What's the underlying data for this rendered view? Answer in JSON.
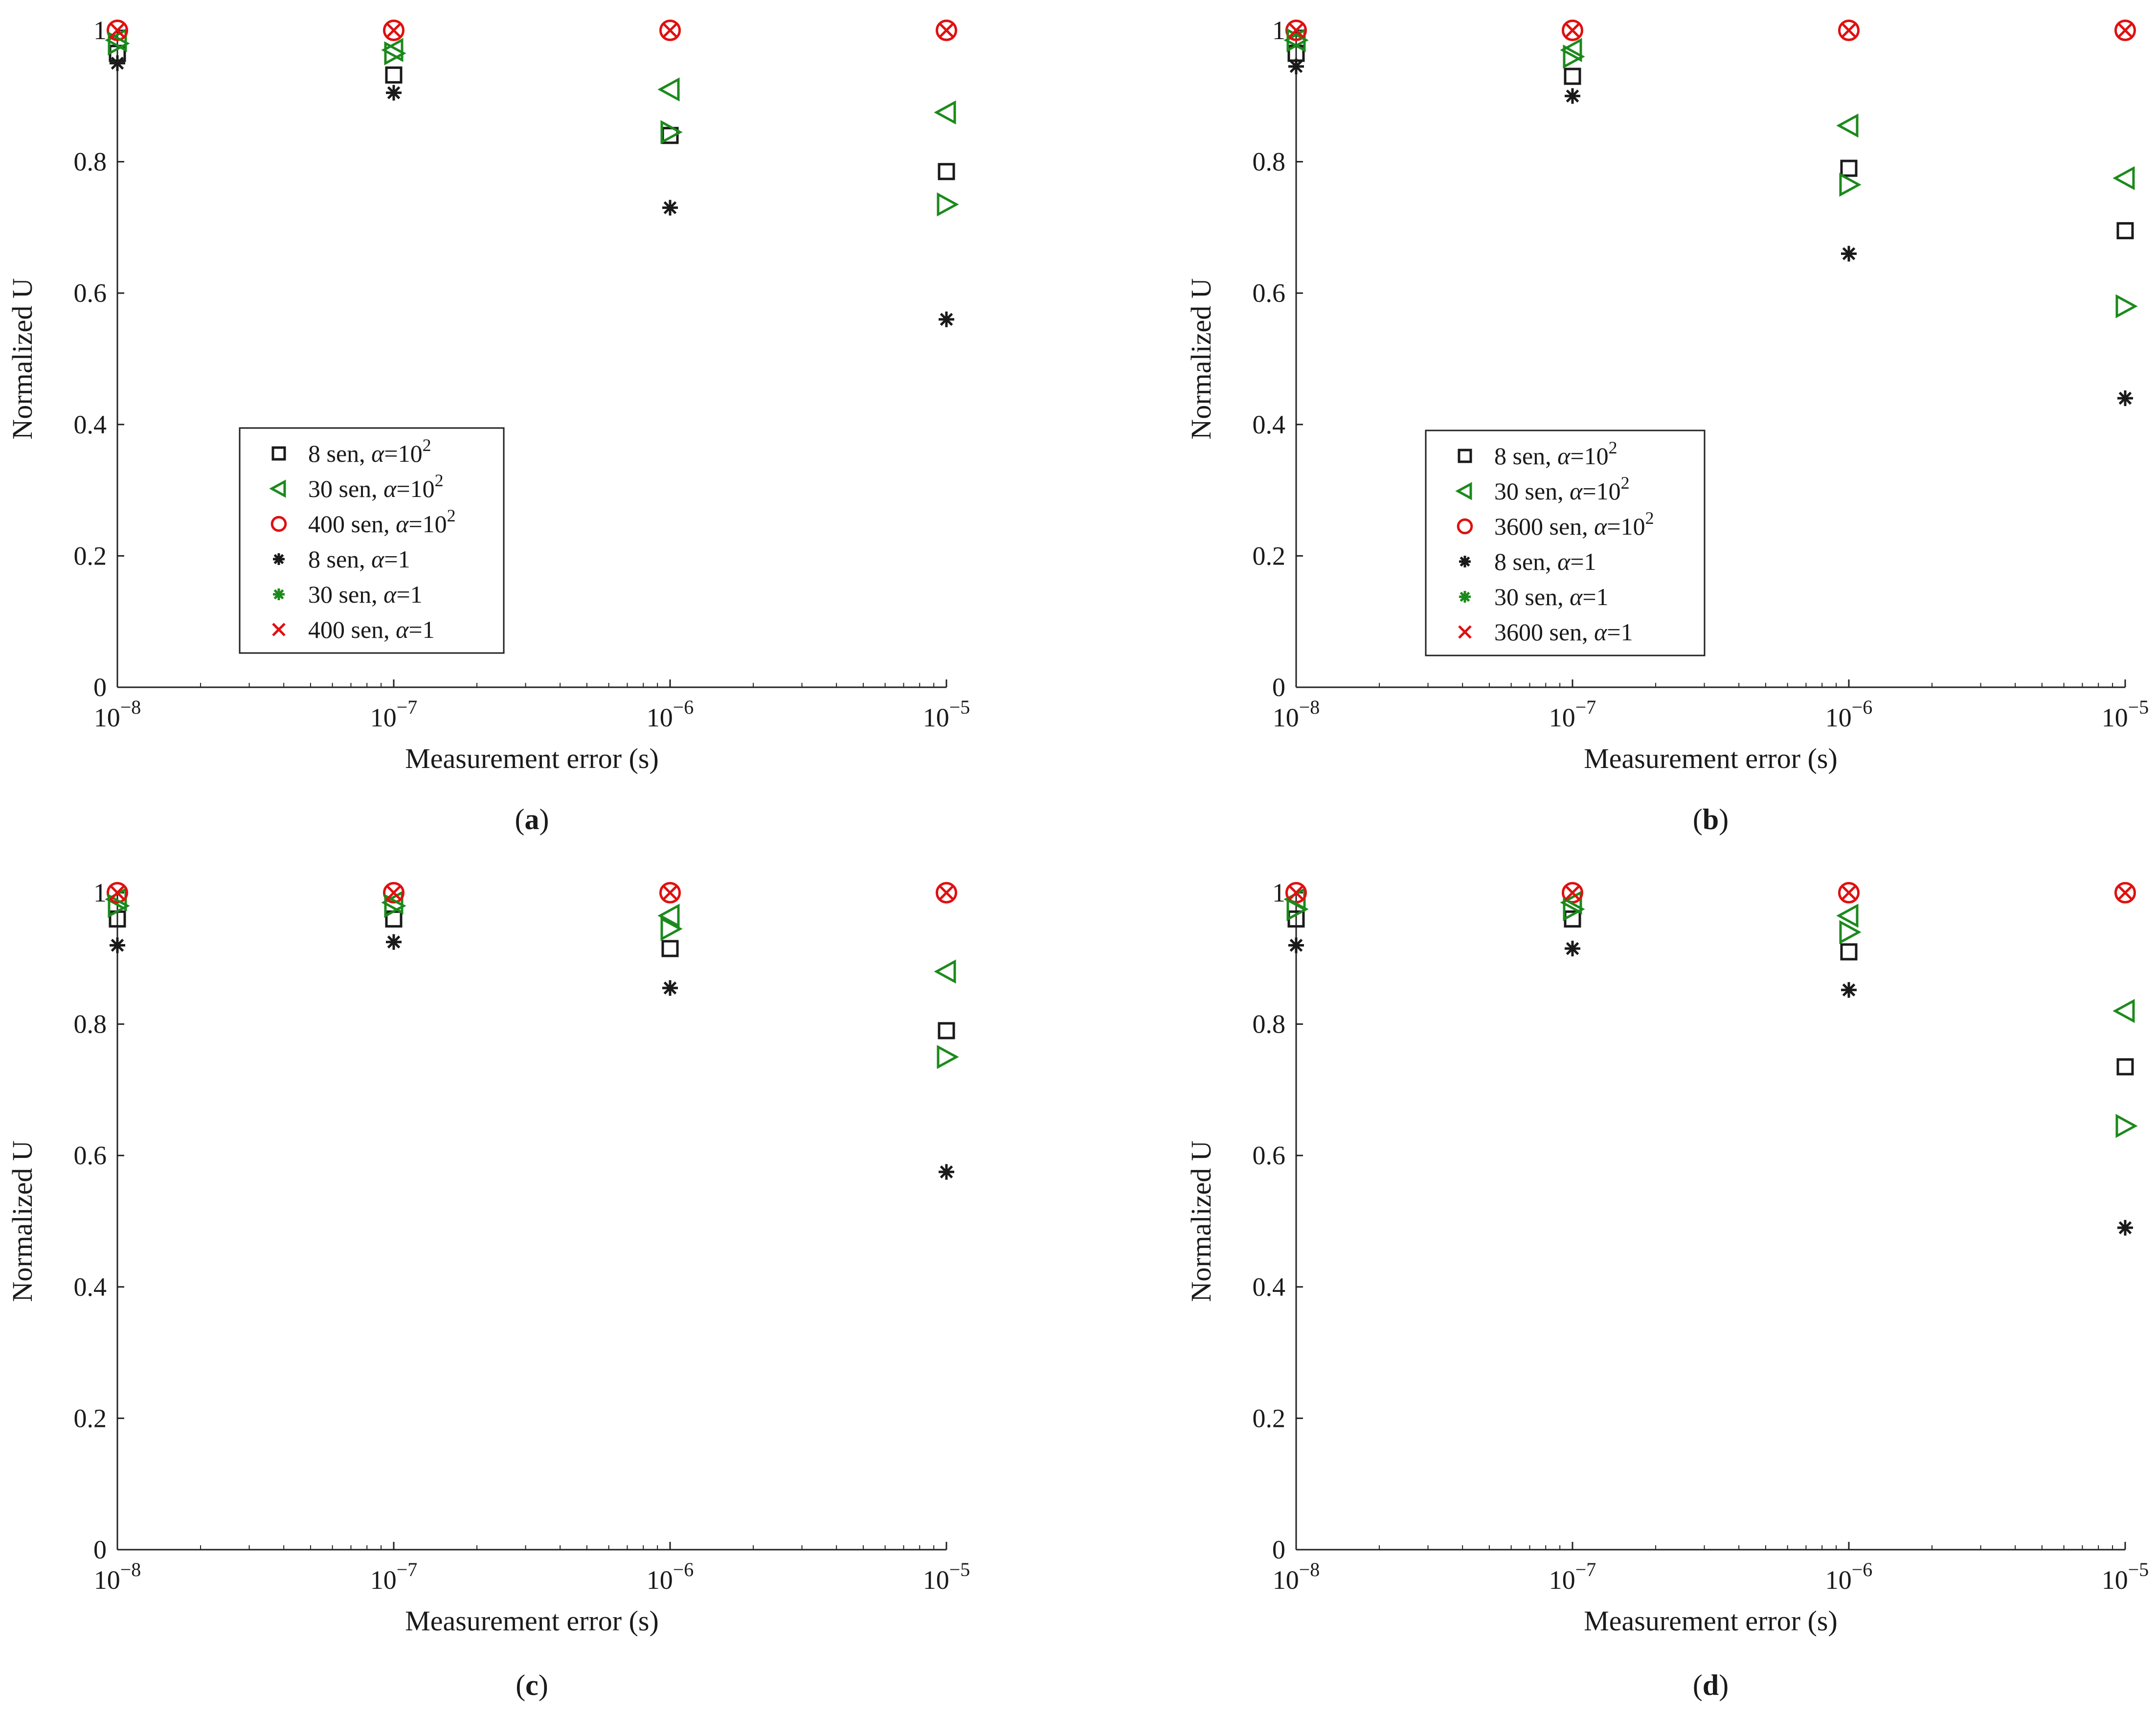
{
  "colors": {
    "black": "#1a1a1a",
    "green": "#1b8a1b",
    "red": "#e01010"
  },
  "chart_data": [
    {
      "id": "a",
      "caption": "a",
      "type": "scatter",
      "xscale": "log",
      "xlabel": "Measurement error (s)",
      "ylabel": "Normalized U",
      "xlim": [
        1e-08,
        1e-05
      ],
      "ylim": [
        0,
        1
      ],
      "x_tick_exponents": [
        -8,
        -7,
        -6,
        -5
      ],
      "y_ticks": [
        "0",
        "0.2",
        "0.4",
        "0.6",
        "0.8",
        "1"
      ],
      "legend": {
        "placement": "center-left",
        "entries": [
          {
            "marker": "square",
            "color": "black",
            "sen": "8 sen,",
            "alpha": "α",
            "value": "=10",
            "sup": "2"
          },
          {
            "marker": "triangle-left",
            "color": "green",
            "sen": "30 sen,",
            "alpha": "α",
            "value": "=10",
            "sup": "2"
          },
          {
            "marker": "circle",
            "color": "red",
            "sen": "400 sen,",
            "alpha": "α",
            "value": "=10",
            "sup": "2"
          },
          {
            "marker": "asterisk",
            "color": "black",
            "sen": "8 sen,",
            "alpha": "α",
            "value": "=1",
            "sup": ""
          },
          {
            "marker": "asterisk",
            "color": "green",
            "sen": "30 sen,",
            "alpha": "α",
            "value": "=1",
            "sup": ""
          },
          {
            "marker": "x",
            "color": "red",
            "sen": "400 sen,",
            "alpha": "α",
            "value": "=1",
            "sup": ""
          }
        ]
      },
      "series": [
        {
          "name": "8 sen, α=10^2",
          "marker": "square",
          "color": "black",
          "x": [
            1e-08,
            1e-07,
            1e-06,
            1e-05
          ],
          "y": [
            0.965,
            0.932,
            0.84,
            0.785
          ]
        },
        {
          "name": "30 sen, α=10^2",
          "marker": "triangle-left",
          "color": "green",
          "x": [
            1e-08,
            1e-07,
            1e-06,
            1e-05
          ],
          "y": [
            0.985,
            0.97,
            0.91,
            0.875
          ]
        },
        {
          "name": "400 sen, α=10^2",
          "marker": "circle",
          "color": "red",
          "x": [
            1e-08,
            1e-07,
            1e-06,
            1e-05
          ],
          "y": [
            1.0,
            1.0,
            1.0,
            1.0
          ]
        },
        {
          "name": "8 sen, α=1",
          "marker": "asterisk",
          "color": "black",
          "x": [
            1e-08,
            1e-07,
            1e-06,
            1e-05
          ],
          "y": [
            0.95,
            0.905,
            0.73,
            0.56
          ]
        },
        {
          "name": "30 sen, α=1",
          "marker": "triangle-right",
          "color": "green",
          "x": [
            1e-08,
            1e-07,
            1e-06,
            1e-05
          ],
          "y": [
            0.98,
            0.965,
            0.845,
            0.735
          ]
        },
        {
          "name": "400 sen, α=1",
          "marker": "x",
          "color": "red",
          "x": [
            1e-08,
            1e-07,
            1e-06,
            1e-05
          ],
          "y": [
            1.0,
            1.0,
            1.0,
            1.0
          ]
        }
      ]
    },
    {
      "id": "b",
      "caption": "b",
      "type": "scatter",
      "xscale": "log",
      "xlabel": "Measurement error (s)",
      "ylabel": "Normalized U",
      "xlim": [
        1e-08,
        1e-05
      ],
      "ylim": [
        0,
        1
      ],
      "x_tick_exponents": [
        -8,
        -7,
        -6,
        -5
      ],
      "y_ticks": [
        "0",
        "0.2",
        "0.4",
        "0.6",
        "0.8",
        "1"
      ],
      "legend": {
        "placement": "lower-left",
        "entries": [
          {
            "marker": "square",
            "color": "black",
            "sen": "8 sen,",
            "alpha": "α",
            "value": "=10",
            "sup": "2"
          },
          {
            "marker": "triangle-left",
            "color": "green",
            "sen": "30 sen,",
            "alpha": "α",
            "value": "=10",
            "sup": "2"
          },
          {
            "marker": "circle",
            "color": "red",
            "sen": "3600 sen,",
            "alpha": "α",
            "value": "=10",
            "sup": "2"
          },
          {
            "marker": "asterisk",
            "color": "black",
            "sen": "8 sen,",
            "alpha": "α",
            "value": "=1",
            "sup": ""
          },
          {
            "marker": "asterisk",
            "color": "green",
            "sen": "30 sen,",
            "alpha": "α",
            "value": "=1",
            "sup": ""
          },
          {
            "marker": "x",
            "color": "red",
            "sen": "3600 sen,",
            "alpha": "α",
            "value": "=1",
            "sup": ""
          }
        ]
      },
      "series": [
        {
          "name": "8 sen, α=10^2",
          "marker": "square",
          "color": "black",
          "x": [
            1e-08,
            1e-07,
            1e-06,
            1e-05
          ],
          "y": [
            0.965,
            0.93,
            0.79,
            0.695
          ]
        },
        {
          "name": "30 sen, α=10^2",
          "marker": "triangle-left",
          "color": "green",
          "x": [
            1e-08,
            1e-07,
            1e-06,
            1e-05
          ],
          "y": [
            0.985,
            0.97,
            0.855,
            0.775
          ]
        },
        {
          "name": "3600 sen, α=10^2",
          "marker": "circle",
          "color": "red",
          "x": [
            1e-08,
            1e-07,
            1e-06,
            1e-05
          ],
          "y": [
            1.0,
            1.0,
            1.0,
            1.0
          ]
        },
        {
          "name": "8 sen, α=1",
          "marker": "asterisk",
          "color": "black",
          "x": [
            1e-08,
            1e-07,
            1e-06,
            1e-05
          ],
          "y": [
            0.945,
            0.9,
            0.66,
            0.44
          ]
        },
        {
          "name": "30 sen, α=1",
          "marker": "triangle-right",
          "color": "green",
          "x": [
            1e-08,
            1e-07,
            1e-06,
            1e-05
          ],
          "y": [
            0.985,
            0.96,
            0.765,
            0.58
          ]
        },
        {
          "name": "3600 sen, α=1",
          "marker": "x",
          "color": "red",
          "x": [
            1e-08,
            1e-07,
            1e-06,
            1e-05
          ],
          "y": [
            1.0,
            1.0,
            1.0,
            1.0
          ]
        }
      ]
    },
    {
      "id": "c",
      "caption": "c",
      "type": "scatter",
      "xscale": "log",
      "xlabel": "Measurement error (s)",
      "ylabel": "Normalized U",
      "xlim": [
        1e-08,
        1e-05
      ],
      "ylim": [
        0,
        1
      ],
      "x_tick_exponents": [
        -8,
        -7,
        -6,
        -5
      ],
      "y_ticks": [
        "0",
        "0.2",
        "0.4",
        "0.6",
        "0.8",
        "1"
      ],
      "legend": null,
      "series": [
        {
          "name": "8 sen, α=10^2",
          "marker": "square",
          "color": "black",
          "x": [
            1e-08,
            1e-07,
            1e-06,
            1e-05
          ],
          "y": [
            0.96,
            0.96,
            0.915,
            0.79
          ]
        },
        {
          "name": "30 sen, α=10^2",
          "marker": "triangle-left",
          "color": "green",
          "x": [
            1e-08,
            1e-07,
            1e-06,
            1e-05
          ],
          "y": [
            0.99,
            0.985,
            0.965,
            0.88
          ]
        },
        {
          "name": "400 sen, α=10^2",
          "marker": "circle",
          "color": "red",
          "x": [
            1e-08,
            1e-07,
            1e-06,
            1e-05
          ],
          "y": [
            1.0,
            1.0,
            1.0,
            1.0
          ]
        },
        {
          "name": "8 sen, α=1",
          "marker": "asterisk",
          "color": "black",
          "x": [
            1e-08,
            1e-07,
            1e-06,
            1e-05
          ],
          "y": [
            0.92,
            0.925,
            0.855,
            0.575
          ]
        },
        {
          "name": "30 sen, α=1",
          "marker": "triangle-right",
          "color": "green",
          "x": [
            1e-08,
            1e-07,
            1e-06,
            1e-05
          ],
          "y": [
            0.98,
            0.98,
            0.945,
            0.75
          ]
        },
        {
          "name": "400 sen, α=1",
          "marker": "x",
          "color": "red",
          "x": [
            1e-08,
            1e-07,
            1e-06,
            1e-05
          ],
          "y": [
            1.0,
            1.0,
            1.0,
            1.0
          ]
        }
      ]
    },
    {
      "id": "d",
      "caption": "d",
      "type": "scatter",
      "xscale": "log",
      "xlabel": "Measurement error (s)",
      "ylabel": "Normalized U",
      "xlim": [
        1e-08,
        1e-05
      ],
      "ylim": [
        0,
        1
      ],
      "x_tick_exponents": [
        -8,
        -7,
        -6,
        -5
      ],
      "y_ticks": [
        "0",
        "0.2",
        "0.4",
        "0.6",
        "0.8",
        "1"
      ],
      "legend": null,
      "series": [
        {
          "name": "8 sen, α=10^2",
          "marker": "square",
          "color": "black",
          "x": [
            1e-08,
            1e-07,
            1e-06,
            1e-05
          ],
          "y": [
            0.96,
            0.96,
            0.91,
            0.735
          ]
        },
        {
          "name": "30 sen, α=10^2",
          "marker": "triangle-left",
          "color": "green",
          "x": [
            1e-08,
            1e-07,
            1e-06,
            1e-05
          ],
          "y": [
            0.99,
            0.985,
            0.965,
            0.82
          ]
        },
        {
          "name": "3600 sen, α=10^2",
          "marker": "circle",
          "color": "red",
          "x": [
            1e-08,
            1e-07,
            1e-06,
            1e-05
          ],
          "y": [
            1.0,
            1.0,
            1.0,
            1.0
          ]
        },
        {
          "name": "8 sen, α=1",
          "marker": "asterisk",
          "color": "black",
          "x": [
            1e-08,
            1e-07,
            1e-06,
            1e-05
          ],
          "y": [
            0.92,
            0.915,
            0.852,
            0.49
          ]
        },
        {
          "name": "30 sen, α=1",
          "marker": "triangle-right",
          "color": "green",
          "x": [
            1e-08,
            1e-07,
            1e-06,
            1e-05
          ],
          "y": [
            0.975,
            0.975,
            0.94,
            0.645
          ]
        },
        {
          "name": "3600 sen, α=1",
          "marker": "x",
          "color": "red",
          "x": [
            1e-08,
            1e-07,
            1e-06,
            1e-05
          ],
          "y": [
            1.0,
            1.0,
            1.0,
            1.0
          ]
        }
      ]
    }
  ]
}
